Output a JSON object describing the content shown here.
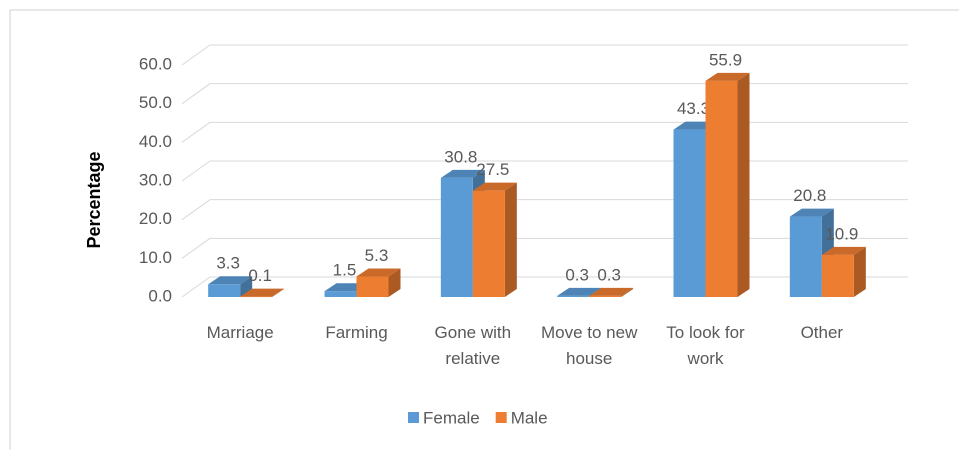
{
  "chart_data": {
    "type": "bar",
    "y_label": "Percentage",
    "categories": [
      "Marriage",
      "Farming",
      "Gone with relative",
      "Move to new house",
      "To look for work",
      "Other"
    ],
    "series": [
      {
        "name": "Female",
        "color": "#5b9bd5",
        "values": [
          3.3,
          1.5,
          30.8,
          0.3,
          43.3,
          20.8
        ]
      },
      {
        "name": "Male",
        "color": "#ed7d31",
        "values": [
          0.1,
          5.3,
          27.5,
          0.3,
          55.9,
          10.9
        ]
      }
    ],
    "ylim": [
      0,
      60
    ],
    "yticks": [
      {
        "value": 0,
        "label": "0.0"
      },
      {
        "value": 10,
        "label": "10.0"
      },
      {
        "value": 20,
        "label": "20.0"
      },
      {
        "value": 30,
        "label": "30.0"
      },
      {
        "value": 40,
        "label": "40.0"
      },
      {
        "value": 50,
        "label": "50.0"
      },
      {
        "value": 60,
        "label": "60.0"
      }
    ],
    "grid": true,
    "legend": "bottom"
  }
}
